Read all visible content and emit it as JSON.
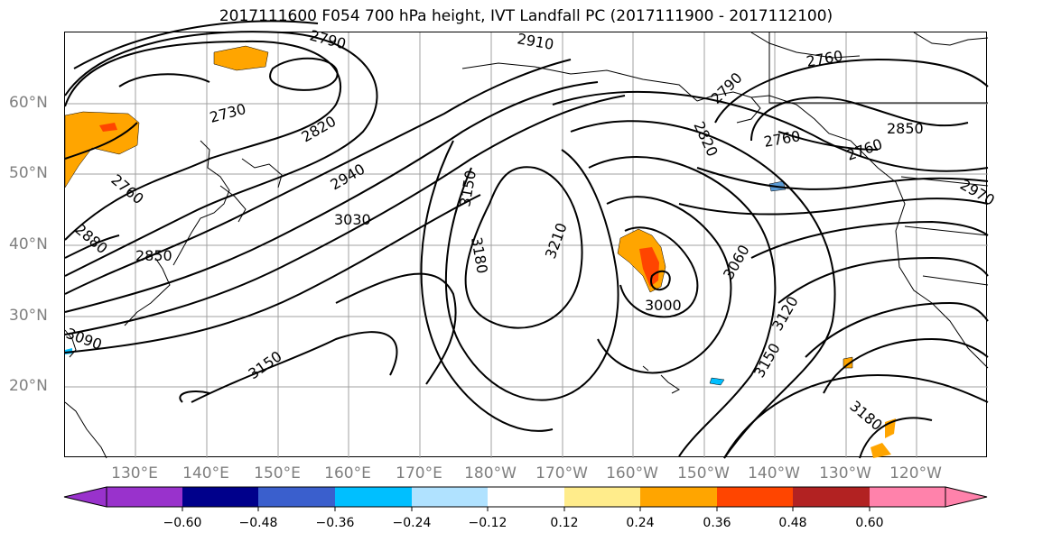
{
  "title": "2017111600 F054 700 hPa height, IVT Landfall PC (2017111900 - 2017112100)",
  "lat_labels": [
    "60°N",
    "50°N",
    "40°N",
    "30°N",
    "20°N"
  ],
  "lon_labels": [
    "130°E",
    "140°E",
    "150°E",
    "160°E",
    "170°E",
    "180°W",
    "170°W",
    "160°W",
    "150°W",
    "140°W",
    "130°W",
    "120°W"
  ],
  "contour_labels": [
    "2790",
    "2910",
    "2760",
    "2730",
    "2820",
    "2940",
    "3030",
    "2760",
    "2880",
    "2850",
    "3090",
    "3150",
    "3150",
    "3180",
    "3210",
    "3000",
    "3060",
    "3120",
    "3150",
    "2790",
    "2820",
    "2760",
    "2850",
    "2760",
    "2970",
    "3180"
  ],
  "colorbar": {
    "tick_labels": [
      "−0.60",
      "−0.48",
      "−0.36",
      "−0.24",
      "−0.12",
      "0.12",
      "0.24",
      "0.36",
      "0.48",
      "0.60"
    ],
    "colors": [
      "#9932cc",
      "#00008b",
      "#3a5fcd",
      "#00bfff",
      "#b0e2ff",
      "#ffffff",
      "#ffec8b",
      "#ffa500",
      "#ff4500",
      "#b22222",
      "#ff82ab"
    ]
  },
  "colors": {
    "land": "#000000",
    "grid": "#a0a0a0",
    "contour": "#000000",
    "axis_label": "#7f7f7f"
  }
}
